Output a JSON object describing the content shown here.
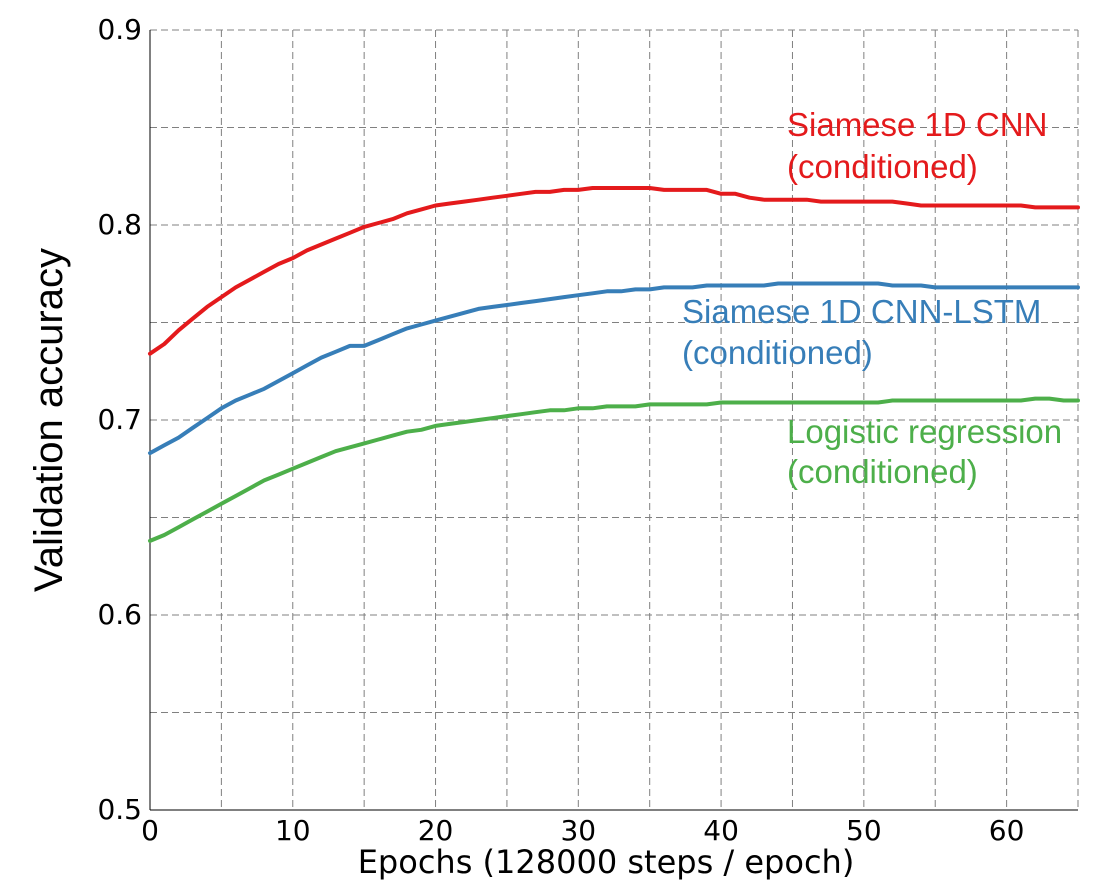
{
  "chart_data": {
    "type": "line",
    "title": "",
    "xlabel": "Epochs (128000 steps / epoch)",
    "ylabel": "Validation accuracy",
    "xlim": [
      0,
      65
    ],
    "ylim": [
      0.5,
      0.9
    ],
    "x_ticks": [
      0,
      10,
      20,
      30,
      40,
      50,
      60
    ],
    "x_tick_labels": [
      "0",
      "10",
      "20",
      "30",
      "40",
      "50",
      "60"
    ],
    "x_grid": [
      0,
      5,
      10,
      15,
      20,
      25,
      30,
      35,
      40,
      45,
      50,
      55,
      60,
      65
    ],
    "y_ticks": [
      0.5,
      0.6,
      0.7,
      0.8,
      0.9
    ],
    "y_tick_labels": [
      "0.5",
      "0.6",
      "0.7",
      "0.8",
      "0.9"
    ],
    "y_grid": [
      0.55,
      0.6,
      0.65,
      0.7,
      0.75,
      0.8,
      0.85,
      0.9
    ],
    "grid": true,
    "legend": "none",
    "series": [
      {
        "label_lines": [
          "Siamese 1D CNN",
          "(conditioned)"
        ],
        "color": "#e41a1c",
        "x": [
          0,
          1,
          2,
          3,
          4,
          5,
          6,
          7,
          8,
          9,
          10,
          11,
          12,
          13,
          14,
          15,
          16,
          17,
          18,
          19,
          20,
          21,
          22,
          23,
          24,
          25,
          26,
          27,
          28,
          29,
          30,
          31,
          32,
          33,
          34,
          35,
          36,
          37,
          38,
          39,
          40,
          41,
          42,
          43,
          44,
          45,
          46,
          47,
          48,
          49,
          50,
          51,
          52,
          53,
          54,
          55,
          56,
          57,
          58,
          59,
          60,
          61,
          62,
          63,
          64,
          65
        ],
        "y": [
          0.734,
          0.739,
          0.746,
          0.752,
          0.758,
          0.763,
          0.768,
          0.772,
          0.776,
          0.78,
          0.783,
          0.787,
          0.79,
          0.793,
          0.796,
          0.799,
          0.801,
          0.803,
          0.806,
          0.808,
          0.81,
          0.811,
          0.812,
          0.813,
          0.814,
          0.815,
          0.816,
          0.817,
          0.817,
          0.818,
          0.818,
          0.819,
          0.819,
          0.819,
          0.819,
          0.819,
          0.818,
          0.818,
          0.818,
          0.818,
          0.816,
          0.816,
          0.814,
          0.813,
          0.813,
          0.813,
          0.813,
          0.812,
          0.812,
          0.812,
          0.812,
          0.812,
          0.812,
          0.811,
          0.81,
          0.81,
          0.81,
          0.81,
          0.81,
          0.81,
          0.81,
          0.81,
          0.809,
          0.809,
          0.809,
          0.809
        ]
      },
      {
        "label_lines": [
          "Siamese 1D CNN-LSTM",
          "(conditioned)"
        ],
        "color": "#377eb8",
        "x": [
          0,
          1,
          2,
          3,
          4,
          5,
          6,
          7,
          8,
          9,
          10,
          11,
          12,
          13,
          14,
          15,
          16,
          17,
          18,
          19,
          20,
          21,
          22,
          23,
          24,
          25,
          26,
          27,
          28,
          29,
          30,
          31,
          32,
          33,
          34,
          35,
          36,
          37,
          38,
          39,
          40,
          41,
          42,
          43,
          44,
          45,
          46,
          47,
          48,
          49,
          50,
          51,
          52,
          53,
          54,
          55,
          56,
          57,
          58,
          59,
          60,
          61,
          62,
          63,
          64,
          65
        ],
        "y": [
          0.683,
          0.687,
          0.691,
          0.696,
          0.701,
          0.706,
          0.71,
          0.713,
          0.716,
          0.72,
          0.724,
          0.728,
          0.732,
          0.735,
          0.738,
          0.738,
          0.741,
          0.744,
          0.747,
          0.749,
          0.751,
          0.753,
          0.755,
          0.757,
          0.758,
          0.759,
          0.76,
          0.761,
          0.762,
          0.763,
          0.764,
          0.765,
          0.766,
          0.766,
          0.767,
          0.767,
          0.768,
          0.768,
          0.768,
          0.769,
          0.769,
          0.769,
          0.769,
          0.769,
          0.77,
          0.77,
          0.77,
          0.77,
          0.77,
          0.77,
          0.77,
          0.77,
          0.769,
          0.769,
          0.769,
          0.768,
          0.768,
          0.768,
          0.768,
          0.768,
          0.768,
          0.768,
          0.768,
          0.768,
          0.768,
          0.768
        ]
      },
      {
        "label_lines": [
          "Logistic regression",
          "(conditioned)"
        ],
        "color": "#4daf4a",
        "x": [
          0,
          1,
          2,
          3,
          4,
          5,
          6,
          7,
          8,
          9,
          10,
          11,
          12,
          13,
          14,
          15,
          16,
          17,
          18,
          19,
          20,
          21,
          22,
          23,
          24,
          25,
          26,
          27,
          28,
          29,
          30,
          31,
          32,
          33,
          34,
          35,
          36,
          37,
          38,
          39,
          40,
          41,
          42,
          43,
          44,
          45,
          46,
          47,
          48,
          49,
          50,
          51,
          52,
          53,
          54,
          55,
          56,
          57,
          58,
          59,
          60,
          61,
          62,
          63,
          64,
          65
        ],
        "y": [
          0.638,
          0.641,
          0.645,
          0.649,
          0.653,
          0.657,
          0.661,
          0.665,
          0.669,
          0.672,
          0.675,
          0.678,
          0.681,
          0.684,
          0.686,
          0.688,
          0.69,
          0.692,
          0.694,
          0.695,
          0.697,
          0.698,
          0.699,
          0.7,
          0.701,
          0.702,
          0.703,
          0.704,
          0.705,
          0.705,
          0.706,
          0.706,
          0.707,
          0.707,
          0.707,
          0.708,
          0.708,
          0.708,
          0.708,
          0.708,
          0.709,
          0.709,
          0.709,
          0.709,
          0.709,
          0.709,
          0.709,
          0.709,
          0.709,
          0.709,
          0.709,
          0.709,
          0.71,
          0.71,
          0.71,
          0.71,
          0.71,
          0.71,
          0.71,
          0.71,
          0.71,
          0.71,
          0.711,
          0.711,
          0.71,
          0.71
        ]
      }
    ]
  }
}
